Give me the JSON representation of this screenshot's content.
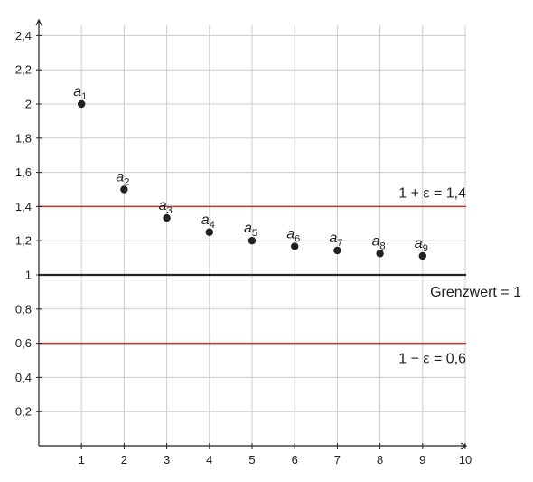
{
  "chart_data": {
    "type": "scatter",
    "x_ticks": [
      "1",
      "2",
      "3",
      "4",
      "5",
      "6",
      "7",
      "8",
      "9",
      "10"
    ],
    "y_ticks": [
      "0,2",
      "0,4",
      "0,6",
      "0,8",
      "1",
      "1,2",
      "1,4",
      "1,6",
      "1,8",
      "2",
      "2,2",
      "2,4"
    ],
    "xlim": [
      0,
      10
    ],
    "ylim": [
      0,
      2.5
    ],
    "grid": true,
    "points": [
      {
        "x": 1,
        "y": 2.0,
        "label_base": "a",
        "label_sub": "1"
      },
      {
        "x": 2,
        "y": 1.5,
        "label_base": "a",
        "label_sub": "2"
      },
      {
        "x": 3,
        "y": 1.333,
        "label_base": "a",
        "label_sub": "3"
      },
      {
        "x": 4,
        "y": 1.25,
        "label_base": "a",
        "label_sub": "4"
      },
      {
        "x": 5,
        "y": 1.2,
        "label_base": "a",
        "label_sub": "5"
      },
      {
        "x": 6,
        "y": 1.167,
        "label_base": "a",
        "label_sub": "6"
      },
      {
        "x": 7,
        "y": 1.143,
        "label_base": "a",
        "label_sub": "7"
      },
      {
        "x": 8,
        "y": 1.125,
        "label_base": "a",
        "label_sub": "8"
      },
      {
        "x": 9,
        "y": 1.111,
        "label_base": "a",
        "label_sub": "9"
      }
    ],
    "reference_lines": [
      {
        "y": 1.4,
        "color": "#c0392b",
        "label": "1 + ε = 1,4"
      },
      {
        "y": 1.0,
        "color": "#222222",
        "label": "Grenzwert = 1"
      },
      {
        "y": 0.6,
        "color": "#c0392b",
        "label": "1 − ε = 0,6"
      }
    ],
    "colors": {
      "grid": "#cccccc",
      "axis": "#222222",
      "point": "#222222"
    }
  }
}
